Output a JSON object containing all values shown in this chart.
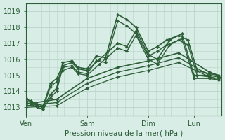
{
  "bg_color": "#d8ede6",
  "grid_color": "#b8d5c8",
  "line_color": "#2d5e38",
  "marker_color": "#2d5e38",
  "xlabel_text": "Pression niveau de la mer( hPa )",
  "xtick_labels": [
    "Ven",
    "Sam",
    "Dim",
    "Lun"
  ],
  "xtick_positions": [
    0,
    1,
    2,
    2.75
  ],
  "ylim": [
    1012.5,
    1019.5
  ],
  "yticks": [
    1013,
    1014,
    1015,
    1016,
    1017,
    1018,
    1019
  ],
  "xlim": [
    0,
    3.2
  ],
  "series": [
    {
      "x": [
        0.0,
        0.08,
        0.18,
        0.28,
        0.4,
        0.5,
        0.6,
        0.75,
        0.85,
        1.0,
        1.15,
        1.3,
        1.5,
        1.65,
        1.8,
        2.0,
        2.15,
        2.3,
        2.5,
        2.65,
        2.8,
        3.0,
        3.15
      ],
      "y": [
        1013.4,
        1013.3,
        1013.1,
        1013.0,
        1013.8,
        1014.2,
        1015.8,
        1015.9,
        1015.5,
        1015.4,
        1016.2,
        1016.1,
        1018.8,
        1018.5,
        1018.0,
        1016.5,
        1016.8,
        1017.2,
        1017.5,
        1017.2,
        1015.3,
        1015.1,
        1015.0
      ],
      "lw": 1.2
    },
    {
      "x": [
        0.0,
        0.08,
        0.18,
        0.28,
        0.4,
        0.5,
        0.6,
        0.75,
        0.85,
        1.0,
        1.15,
        1.3,
        1.5,
        1.65,
        1.8,
        2.0,
        2.15,
        2.3,
        2.5,
        2.65,
        2.8,
        3.0,
        3.15
      ],
      "y": [
        1013.3,
        1013.2,
        1013.0,
        1012.9,
        1013.6,
        1014.0,
        1015.5,
        1015.6,
        1015.2,
        1015.1,
        1015.9,
        1015.8,
        1018.4,
        1018.1,
        1017.6,
        1016.2,
        1016.5,
        1016.9,
        1017.2,
        1016.9,
        1015.0,
        1014.9,
        1014.8
      ],
      "lw": 1.0
    },
    {
      "x": [
        0.0,
        0.5,
        1.0,
        1.5,
        2.0,
        2.5,
        3.0,
        3.15
      ],
      "y": [
        1013.2,
        1013.5,
        1014.8,
        1015.5,
        1015.9,
        1016.4,
        1015.2,
        1015.0
      ],
      "lw": 1.2
    },
    {
      "x": [
        0.0,
        0.5,
        1.0,
        1.5,
        2.0,
        2.5,
        3.0,
        3.15
      ],
      "y": [
        1013.1,
        1013.3,
        1014.5,
        1015.2,
        1015.6,
        1016.1,
        1015.0,
        1014.9
      ],
      "lw": 1.0
    },
    {
      "x": [
        0.0,
        0.5,
        1.0,
        1.5,
        2.0,
        2.5,
        3.0,
        3.15
      ],
      "y": [
        1013.0,
        1013.1,
        1014.2,
        1014.9,
        1015.3,
        1015.8,
        1014.9,
        1014.7
      ],
      "lw": 0.9
    },
    {
      "x": [
        0.0,
        0.08,
        0.18,
        0.28,
        0.4,
        0.5,
        0.6,
        0.75,
        0.85,
        1.0,
        1.2,
        1.5,
        1.65,
        1.8,
        2.0,
        2.15,
        2.35,
        2.55,
        2.75,
        3.0,
        3.15
      ],
      "y": [
        1013.5,
        1013.4,
        1013.2,
        1013.1,
        1014.5,
        1014.8,
        1015.6,
        1015.8,
        1015.4,
        1015.3,
        1016.0,
        1017.0,
        1016.8,
        1017.8,
        1016.3,
        1016.0,
        1017.2,
        1017.6,
        1015.0,
        1015.0,
        1014.9
      ],
      "lw": 1.1
    },
    {
      "x": [
        0.0,
        0.08,
        0.18,
        0.28,
        0.4,
        0.5,
        0.6,
        0.75,
        0.85,
        1.0,
        1.2,
        1.5,
        1.65,
        1.8,
        2.0,
        2.15,
        2.35,
        2.55,
        2.75,
        3.0,
        3.15
      ],
      "y": [
        1013.6,
        1013.3,
        1013.1,
        1013.0,
        1014.3,
        1014.6,
        1015.3,
        1015.5,
        1015.1,
        1015.0,
        1015.7,
        1016.7,
        1016.5,
        1017.5,
        1016.0,
        1015.7,
        1016.9,
        1017.3,
        1014.8,
        1014.8,
        1014.7
      ],
      "lw": 1.0
    }
  ]
}
